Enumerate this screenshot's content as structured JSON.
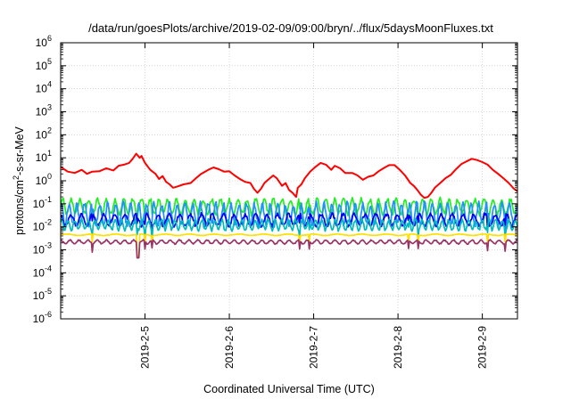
{
  "chart_data": {
    "type": "line",
    "title": "/data/run/goesPlots/archive/2019-02-09/09:00/bryn/../flux/5daysMoonFluxes.txt",
    "xlabel": "Coordinated Universal Time (UTC)",
    "ylabel_parts": {
      "base": "protons/cm",
      "sup": "2",
      "rest": "-s-sr-MeV"
    },
    "yscale": "log",
    "ylim": [
      1e-06,
      1000000.0
    ],
    "y_ticks": [
      {
        "mantissa": "10",
        "exp": "-6"
      },
      {
        "mantissa": "10",
        "exp": "-5"
      },
      {
        "mantissa": "10",
        "exp": "-4"
      },
      {
        "mantissa": "10",
        "exp": "-3"
      },
      {
        "mantissa": "10",
        "exp": "-2"
      },
      {
        "mantissa": "10",
        "exp": "-1"
      },
      {
        "mantissa": "10",
        "exp": "0"
      },
      {
        "mantissa": "10",
        "exp": "1"
      },
      {
        "mantissa": "10",
        "exp": "2"
      },
      {
        "mantissa": "10",
        "exp": "3"
      },
      {
        "mantissa": "10",
        "exp": "4"
      },
      {
        "mantissa": "10",
        "exp": "5"
      },
      {
        "mantissa": "10",
        "exp": "6"
      }
    ],
    "xlim": [
      "2019-02-04 00:00",
      "2019-02-09 10:00"
    ],
    "x_tick_labels": [
      "2019-2-5",
      "2019-2-6",
      "2019-2-7",
      "2019-2-8",
      "2019-2-9"
    ],
    "x_tick_dates": [
      "2019-02-05",
      "2019-02-06",
      "2019-02-07",
      "2019-02-08",
      "2019-02-09"
    ],
    "grid": true,
    "series": [
      {
        "color": "#ff0000",
        "points": [
          [
            "2019-02-04 00:00",
            4
          ],
          [
            "2019-02-04 02:00",
            2.5
          ],
          [
            "2019-02-04 04:00",
            2.2
          ],
          [
            "2019-02-04 06:00",
            3
          ],
          [
            "2019-02-04 07:30",
            2
          ],
          [
            "2019-02-04 09:00",
            2.5
          ],
          [
            "2019-02-04 11:00",
            2.6
          ],
          [
            "2019-02-04 13:00",
            3.5
          ],
          [
            "2019-02-04 15:00",
            2.8
          ],
          [
            "2019-02-04 16:30",
            4.5
          ],
          [
            "2019-02-04 18:00",
            5
          ],
          [
            "2019-02-04 19:30",
            6
          ],
          [
            "2019-02-04 20:30",
            9
          ],
          [
            "2019-02-04 21:30",
            15
          ],
          [
            "2019-02-04 22:30",
            10
          ],
          [
            "2019-02-04 23:00",
            12
          ],
          [
            "2019-02-05 00:00",
            6
          ],
          [
            "2019-02-05 01:30",
            3
          ],
          [
            "2019-02-05 03:00",
            2
          ],
          [
            "2019-02-05 04:00",
            1.2
          ],
          [
            "2019-02-05 05:00",
            1.6
          ],
          [
            "2019-02-05 06:00",
            0.9
          ],
          [
            "2019-02-05 07:00",
            0.7
          ],
          [
            "2019-02-05 08:00",
            0.5
          ],
          [
            "2019-02-05 09:00",
            0.55
          ],
          [
            "2019-02-05 11:00",
            0.7
          ],
          [
            "2019-02-05 13:00",
            0.8
          ],
          [
            "2019-02-05 14:30",
            1.3
          ],
          [
            "2019-02-05 16:00",
            2
          ],
          [
            "2019-02-05 18:00",
            3
          ],
          [
            "2019-02-05 19:30",
            3.8
          ],
          [
            "2019-02-05 21:00",
            3.2
          ],
          [
            "2019-02-05 22:30",
            2.5
          ],
          [
            "2019-02-06 00:00",
            2.6
          ],
          [
            "2019-02-06 01:30",
            1.7
          ],
          [
            "2019-02-06 03:00",
            1.2
          ],
          [
            "2019-02-06 04:30",
            0.9
          ],
          [
            "2019-02-06 06:00",
            0.8
          ],
          [
            "2019-02-06 07:00",
            0.45
          ],
          [
            "2019-02-06 08:00",
            0.3
          ],
          [
            "2019-02-06 09:00",
            0.45
          ],
          [
            "2019-02-06 10:00",
            0.8
          ],
          [
            "2019-02-06 11:00",
            1.1
          ],
          [
            "2019-02-06 12:30",
            1.7
          ],
          [
            "2019-02-06 13:30",
            1.3
          ],
          [
            "2019-02-06 15:00",
            0.6
          ],
          [
            "2019-02-06 16:00",
            0.8
          ],
          [
            "2019-02-06 17:00",
            0.4
          ],
          [
            "2019-02-06 18:00",
            0.3
          ],
          [
            "2019-02-06 19:00",
            0.2
          ],
          [
            "2019-02-06 19:30",
            0.5
          ],
          [
            "2019-02-06 20:30",
            0.7
          ],
          [
            "2019-02-06 21:30",
            1.3
          ],
          [
            "2019-02-06 23:00",
            2.5
          ],
          [
            "2019-02-07 00:30",
            4
          ],
          [
            "2019-02-07 02:00",
            6
          ],
          [
            "2019-02-07 03:30",
            5
          ],
          [
            "2019-02-07 05:00",
            3
          ],
          [
            "2019-02-07 06:00",
            4.5
          ],
          [
            "2019-02-07 07:30",
            3.5
          ],
          [
            "2019-02-07 09:00",
            2.2
          ],
          [
            "2019-02-07 11:00",
            2.2
          ],
          [
            "2019-02-07 12:30",
            1.7
          ],
          [
            "2019-02-07 14:00",
            1.1
          ],
          [
            "2019-02-07 15:30",
            1.5
          ],
          [
            "2019-02-07 17:00",
            1.7
          ],
          [
            "2019-02-07 18:30",
            2.6
          ],
          [
            "2019-02-07 20:00",
            3.6
          ],
          [
            "2019-02-07 21:30",
            4.8
          ],
          [
            "2019-02-07 23:00",
            4.8
          ],
          [
            "2019-02-08 00:30",
            3
          ],
          [
            "2019-02-08 02:00",
            1.7
          ],
          [
            "2019-02-08 03:30",
            0.8
          ],
          [
            "2019-02-08 04:30",
            0.6
          ],
          [
            "2019-02-08 05:30",
            0.4
          ],
          [
            "2019-02-08 06:30",
            0.25
          ],
          [
            "2019-02-08 07:30",
            0.18
          ],
          [
            "2019-02-08 08:30",
            0.2
          ],
          [
            "2019-02-08 09:30",
            0.3
          ],
          [
            "2019-02-08 10:30",
            0.5
          ],
          [
            "2019-02-08 12:00",
            0.8
          ],
          [
            "2019-02-08 13:30",
            1.3
          ],
          [
            "2019-02-08 15:00",
            1.8
          ],
          [
            "2019-02-08 16:30",
            3.2
          ],
          [
            "2019-02-08 18:00",
            5.3
          ],
          [
            "2019-02-08 19:30",
            7
          ],
          [
            "2019-02-08 21:00",
            9
          ],
          [
            "2019-02-08 22:30",
            8
          ],
          [
            "2019-02-09 00:00",
            6.5
          ],
          [
            "2019-02-09 01:30",
            5
          ],
          [
            "2019-02-09 03:00",
            3
          ],
          [
            "2019-02-09 04:30",
            2
          ],
          [
            "2019-02-09 06:00",
            1.3
          ],
          [
            "2019-02-09 07:30",
            0.8
          ],
          [
            "2019-02-09 09:00",
            0.45
          ],
          [
            "2019-02-09 10:00",
            0.35
          ]
        ]
      },
      {
        "color": "#22ee22",
        "base": 0.075,
        "amp": 0.32,
        "period_h": 2.5,
        "phase": 0.3
      },
      {
        "color": "#1e90ff",
        "base": 0.035,
        "amp": 0.45,
        "period_h": 2.2,
        "phase": 1.1
      },
      {
        "color": "#0000ee",
        "base": 0.02,
        "amp": 0.25,
        "period_h": 3.1,
        "phase": 2.0
      },
      {
        "color": "#00bbbb",
        "base": 0.012,
        "amp": 0.22,
        "period_h": 1.9,
        "phase": 0.7
      },
      {
        "color": "#ffe000",
        "base": 0.0045,
        "amp": 0.03,
        "period_h": 7,
        "phase": 0.0
      },
      {
        "color": "#993366",
        "base": 0.0022,
        "amp": 0.08,
        "period_h": 2.6,
        "phase": 1.5
      }
    ],
    "dips": [
      "2019-02-04 09:00",
      "2019-02-04 21:45",
      "2019-02-05 00:00",
      "2019-02-05 02:00",
      "2019-02-06 20:00",
      "2019-02-06 22:45",
      "2019-02-08 03:00",
      "2019-02-08 05:45",
      "2019-02-09 01:30",
      "2019-02-09 06:30"
    ],
    "deep_dip": "2019-02-04 22:00"
  }
}
